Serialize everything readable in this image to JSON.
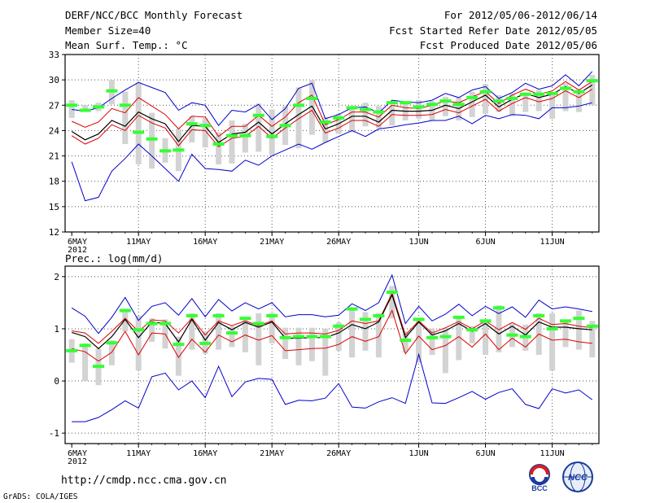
{
  "header": {
    "title": "DERF/NCC/BCC Monthly Forecast",
    "member_size": "Member Size=40",
    "variable": "Mean Surf. Temp.: °C",
    "period": "For 2012/05/06-2012/06/14",
    "fcst_started": "Fcst Started Refer Date 2012/05/05",
    "fcst_produced": "Fcst Produced Date 2012/05/06"
  },
  "footer": {
    "url": "http://cmdp.ncc.cma.gov.cn",
    "grads": "GrADS: COLA/IGES",
    "logo_bcc": "BCC",
    "logo_ncc": "NCC"
  },
  "colors": {
    "max_min": "#0000cc",
    "quartile": "#dd0000",
    "mean": "#000000",
    "spread_bar": "#d3d3d3",
    "median": "#33ff33",
    "gridline": "#555555"
  },
  "chart_data": [
    {
      "type": "line",
      "title": "Mean Surf. Temp.: °C",
      "xlabel": "",
      "ylabel": "",
      "days": 40,
      "ylim": [
        12,
        33
      ],
      "yticks": [
        12,
        15,
        18,
        21,
        24,
        27,
        30,
        33
      ],
      "xticks": [
        {
          "day": 0,
          "label": "6MAY"
        },
        {
          "day": 5,
          "label": "11MAY"
        },
        {
          "day": 10,
          "label": "16MAY"
        },
        {
          "day": 15,
          "label": "21MAY"
        },
        {
          "day": 20,
          "label": "26MAY"
        },
        {
          "day": 26,
          "label": "1JUN"
        },
        {
          "day": 31,
          "label": "6JUN"
        },
        {
          "day": 36,
          "label": "11JUN"
        }
      ],
      "year_label": "2012",
      "series": [
        {
          "name": "max",
          "values": [
            26.5,
            26.3,
            26.7,
            27.8,
            28.8,
            29.7,
            29.1,
            28.5,
            26.4,
            27.3,
            27.0,
            24.6,
            26.4,
            26.2,
            27.1,
            25.3,
            26.6,
            29.0,
            29.6,
            25.4,
            25.9,
            26.7,
            26.8,
            26.1,
            27.6,
            27.4,
            27.3,
            27.6,
            28.4,
            27.9,
            28.8,
            29.2,
            27.8,
            28.5,
            29.6,
            28.9,
            29.3,
            30.6,
            29.3,
            31.0
          ]
        },
        {
          "name": "upper_quartile",
          "values": [
            25.1,
            24.4,
            25.0,
            26.6,
            26.1,
            27.9,
            26.9,
            25.9,
            24.2,
            25.7,
            25.6,
            23.3,
            24.5,
            24.5,
            25.8,
            24.5,
            25.6,
            27.3,
            28.2,
            24.7,
            25.3,
            26.2,
            26.2,
            25.6,
            27.0,
            26.7,
            26.6,
            27.0,
            27.5,
            27.3,
            28.0,
            28.6,
            27.2,
            28.2,
            28.9,
            28.3,
            28.7,
            29.8,
            28.8,
            29.8
          ]
        },
        {
          "name": "mean",
          "values": [
            23.9,
            22.9,
            23.6,
            25.2,
            24.5,
            26.2,
            25.4,
            24.8,
            22.7,
            24.6,
            24.5,
            22.6,
            23.6,
            23.8,
            25.0,
            23.6,
            24.8,
            25.9,
            26.9,
            24.2,
            24.8,
            25.7,
            25.7,
            25.0,
            26.4,
            26.3,
            26.3,
            26.4,
            27.0,
            26.6,
            27.4,
            28.2,
            26.8,
            27.7,
            28.4,
            27.9,
            28.3,
            29.2,
            28.4,
            29.4
          ]
        },
        {
          "name": "lower_quartile",
          "values": [
            23.4,
            22.4,
            23.1,
            24.7,
            24.0,
            25.8,
            24.9,
            24.3,
            22.2,
            24.1,
            24.0,
            22.1,
            23.1,
            23.3,
            24.5,
            23.1,
            24.3,
            25.4,
            26.4,
            23.7,
            24.3,
            25.2,
            25.2,
            24.5,
            25.9,
            25.8,
            25.8,
            25.9,
            26.5,
            26.1,
            26.9,
            27.7,
            26.3,
            27.2,
            27.9,
            27.4,
            27.8,
            28.7,
            27.9,
            28.9
          ]
        },
        {
          "name": "min",
          "values": [
            20.3,
            15.7,
            16.1,
            19.2,
            20.7,
            22.4,
            21.0,
            19.5,
            18.0,
            21.2,
            19.5,
            19.4,
            19.2,
            20.5,
            19.9,
            21.0,
            21.7,
            22.4,
            21.8,
            22.6,
            23.3,
            24.0,
            23.3,
            24.2,
            24.4,
            24.7,
            24.9,
            25.2,
            25.2,
            25.7,
            24.8,
            25.8,
            25.4,
            25.9,
            25.8,
            25.4,
            26.7,
            26.7,
            26.9,
            27.3
          ]
        }
      ],
      "bars": [
        {
          "low": 25.5,
          "high": 27.6
        },
        {
          "low": 26.4,
          "high": 27.0
        },
        {
          "low": 26.3,
          "high": 27.3
        },
        {
          "low": 27.1,
          "high": 30.0
        },
        {
          "low": 22.4,
          "high": 28.6
        },
        {
          "low": 20.0,
          "high": 29.7
        },
        {
          "low": 19.5,
          "high": 26.1
        },
        {
          "low": 20.2,
          "high": 23.1
        },
        {
          "low": 19.2,
          "high": 24.2
        },
        {
          "low": 22.6,
          "high": 25.7
        },
        {
          "low": 22.0,
          "high": 25.5
        },
        {
          "low": 20.0,
          "high": 23.8
        },
        {
          "low": 20.1,
          "high": 25.2
        },
        {
          "low": 21.4,
          "high": 24.8
        },
        {
          "low": 21.5,
          "high": 27.2
        },
        {
          "low": 21.1,
          "high": 26.5
        },
        {
          "low": 22.3,
          "high": 26.9
        },
        {
          "low": 21.9,
          "high": 29.1
        },
        {
          "low": 23.5,
          "high": 30.0
        },
        {
          "low": 22.6,
          "high": 25.6
        },
        {
          "low": 23.6,
          "high": 26.0
        },
        {
          "low": 23.8,
          "high": 26.8
        },
        {
          "low": 24.5,
          "high": 27.3
        },
        {
          "low": 24.3,
          "high": 26.9
        },
        {
          "low": 24.6,
          "high": 27.0
        },
        {
          "low": 25.2,
          "high": 27.2
        },
        {
          "low": 25.4,
          "high": 27.6
        },
        {
          "low": 25.2,
          "high": 27.5
        },
        {
          "low": 25.7,
          "high": 28.0
        },
        {
          "low": 25.2,
          "high": 27.9
        },
        {
          "low": 25.6,
          "high": 28.6
        },
        {
          "low": 26.0,
          "high": 29.5
        },
        {
          "low": 26.2,
          "high": 28.2
        },
        {
          "low": 25.7,
          "high": 28.4
        },
        {
          "low": 26.2,
          "high": 28.4
        },
        {
          "low": 26.3,
          "high": 28.8
        },
        {
          "low": 25.4,
          "high": 28.5
        },
        {
          "low": 26.3,
          "high": 29.6
        },
        {
          "low": 26.2,
          "high": 28.4
        },
        {
          "low": 27.0,
          "high": 30.6
        }
      ],
      "median": [
        27.0,
        26.4,
        26.8,
        28.7,
        27.0,
        23.8,
        23.0,
        21.6,
        21.7,
        24.8,
        24.6,
        22.4,
        23.4,
        23.4,
        25.8,
        23.3,
        24.6,
        27.0,
        27.8,
        25.0,
        25.5,
        26.7,
        26.5,
        26.2,
        27.3,
        27.3,
        26.8,
        27.1,
        27.5,
        27.1,
        27.9,
        28.6,
        27.5,
        27.8,
        28.3,
        28.3,
        28.4,
        29.0,
        28.6,
        29.9
      ]
    },
    {
      "type": "line",
      "title": "Prec.: log(mm/d)",
      "xlabel": "",
      "ylabel": "",
      "days": 40,
      "ylim": [
        -1.2,
        2.2
      ],
      "yticks": [
        -1,
        0,
        1,
        2
      ],
      "xticks": [
        {
          "day": 0,
          "label": "6MAY"
        },
        {
          "day": 5,
          "label": "11MAY"
        },
        {
          "day": 10,
          "label": "16MAY"
        },
        {
          "day": 15,
          "label": "21MAY"
        },
        {
          "day": 20,
          "label": "26MAY"
        },
        {
          "day": 26,
          "label": "1JUN"
        },
        {
          "day": 31,
          "label": "6JUN"
        },
        {
          "day": 36,
          "label": "11JUN"
        }
      ],
      "year_label": "2012",
      "series": [
        {
          "name": "max",
          "values": [
            1.4,
            1.24,
            0.91,
            1.22,
            1.6,
            1.16,
            1.43,
            1.5,
            1.26,
            1.58,
            1.23,
            1.56,
            1.34,
            1.5,
            1.38,
            1.5,
            1.23,
            1.27,
            1.27,
            1.23,
            1.26,
            1.48,
            1.35,
            1.5,
            2.03,
            1.1,
            1.43,
            1.15,
            1.28,
            1.47,
            1.25,
            1.43,
            1.29,
            1.42,
            1.22,
            1.55,
            1.38,
            1.42,
            1.38,
            1.33
          ]
        },
        {
          "name": "upper_quartile",
          "values": [
            0.96,
            0.92,
            0.72,
            0.95,
            1.2,
            0.95,
            1.17,
            1.15,
            0.92,
            1.2,
            0.88,
            1.15,
            1.06,
            1.15,
            1.06,
            1.15,
            0.9,
            0.92,
            0.92,
            0.9,
            0.97,
            1.15,
            1.1,
            1.15,
            1.68,
            0.88,
            1.15,
            0.92,
            1.02,
            1.14,
            1.0,
            1.15,
            0.98,
            1.12,
            0.99,
            1.2,
            1.08,
            1.1,
            1.05,
            1.02
          ]
        },
        {
          "name": "mean",
          "values": [
            0.93,
            0.85,
            0.62,
            0.85,
            1.18,
            0.83,
            1.13,
            1.1,
            0.75,
            1.18,
            0.78,
            1.12,
            0.98,
            1.12,
            1.03,
            1.13,
            0.82,
            0.82,
            0.83,
            0.83,
            0.92,
            1.08,
            1.0,
            1.13,
            1.65,
            0.83,
            1.13,
            0.88,
            0.96,
            1.1,
            0.95,
            1.1,
            0.9,
            1.05,
            0.88,
            1.13,
            1.03,
            1.03,
            1.0,
            0.98
          ]
        },
        {
          "name": "lower_quartile",
          "values": [
            0.62,
            0.56,
            0.38,
            0.55,
            0.95,
            0.5,
            0.92,
            0.9,
            0.45,
            0.8,
            0.55,
            0.88,
            0.75,
            0.88,
            0.78,
            0.87,
            0.58,
            0.6,
            0.62,
            0.63,
            0.7,
            0.85,
            0.76,
            0.85,
            1.35,
            0.52,
            0.86,
            0.6,
            0.68,
            0.85,
            0.65,
            0.9,
            0.6,
            0.82,
            0.65,
            0.9,
            0.78,
            0.8,
            0.75,
            0.72
          ]
        },
        {
          "name": "min",
          "values": [
            -0.78,
            -0.78,
            -0.7,
            -0.55,
            -0.38,
            -0.52,
            0.08,
            0.15,
            -0.17,
            0.0,
            -0.32,
            0.28,
            -0.3,
            -0.02,
            0.05,
            0.03,
            -0.45,
            -0.37,
            -0.38,
            -0.33,
            -0.05,
            -0.5,
            -0.52,
            -0.4,
            -0.32,
            -0.43,
            0.51,
            -0.42,
            -0.43,
            -0.32,
            -0.2,
            -0.35,
            -0.22,
            -0.15,
            -0.45,
            -0.53,
            -0.15,
            -0.23,
            -0.17,
            -0.36
          ]
        }
      ],
      "bars": [
        {
          "low": 0.35,
          "high": 0.8
        },
        {
          "low": 0.0,
          "high": 0.72
        },
        {
          "low": -0.08,
          "high": 0.62
        },
        {
          "low": 0.3,
          "high": 0.78
        },
        {
          "low": 0.95,
          "high": 1.33
        },
        {
          "low": 0.2,
          "high": 1.25
        },
        {
          "low": 0.75,
          "high": 1.2
        },
        {
          "low": 0.62,
          "high": 1.18
        },
        {
          "low": 0.1,
          "high": 0.85
        },
        {
          "low": 0.6,
          "high": 1.3
        },
        {
          "low": 0.52,
          "high": 0.95
        },
        {
          "low": 0.6,
          "high": 1.3
        },
        {
          "low": 0.65,
          "high": 1.05
        },
        {
          "low": 0.55,
          "high": 1.22
        },
        {
          "low": 0.3,
          "high": 1.3
        },
        {
          "low": 0.72,
          "high": 1.3
        },
        {
          "low": 0.42,
          "high": 1.02
        },
        {
          "low": 0.3,
          "high": 1.02
        },
        {
          "low": 0.38,
          "high": 1.02
        },
        {
          "low": 0.1,
          "high": 1.0
        },
        {
          "low": 0.58,
          "high": 1.12
        },
        {
          "low": 0.45,
          "high": 1.35
        },
        {
          "low": 0.58,
          "high": 1.32
        },
        {
          "low": 0.45,
          "high": 1.3
        },
        {
          "low": 1.2,
          "high": 1.82
        },
        {
          "low": 0.55,
          "high": 0.95
        },
        {
          "low": 0.35,
          "high": 1.2
        },
        {
          "low": 0.5,
          "high": 1.0
        },
        {
          "low": 0.15,
          "high": 1.02
        },
        {
          "low": 0.4,
          "high": 1.25
        },
        {
          "low": 0.72,
          "high": 1.05
        },
        {
          "low": 0.5,
          "high": 1.18
        },
        {
          "low": 0.55,
          "high": 1.45
        },
        {
          "low": 0.65,
          "high": 1.1
        },
        {
          "low": 0.58,
          "high": 1.08
        },
        {
          "low": 0.5,
          "high": 1.3
        },
        {
          "low": 0.2,
          "high": 1.3
        },
        {
          "low": 0.65,
          "high": 1.15
        },
        {
          "low": 0.6,
          "high": 1.35
        },
        {
          "low": 0.45,
          "high": 1.15
        }
      ],
      "median": [
        0.58,
        0.68,
        0.28,
        0.73,
        1.35,
        0.98,
        1.1,
        1.1,
        0.7,
        1.25,
        0.72,
        1.25,
        0.92,
        1.2,
        1.1,
        1.25,
        0.83,
        0.85,
        0.85,
        0.85,
        1.05,
        1.38,
        1.18,
        1.25,
        1.7,
        0.78,
        1.18,
        0.83,
        0.85,
        1.22,
        0.98,
        1.15,
        1.4,
        0.88,
        0.85,
        1.25,
        1.0,
        1.15,
        1.2,
        1.05
      ]
    }
  ]
}
